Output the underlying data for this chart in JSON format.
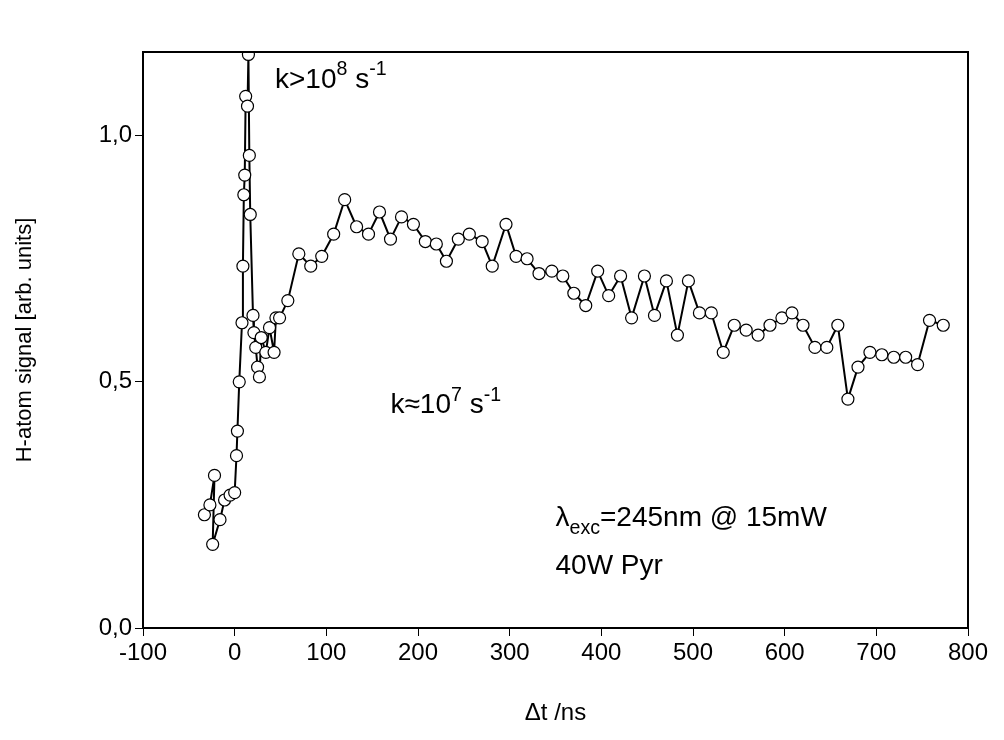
{
  "chart_data": {
    "type": "line",
    "xlabel": "Δt /ns",
    "ylabel": "H-atom signal [arb. units]",
    "x": [
      -33,
      -27,
      -22,
      -24,
      -16,
      -11,
      -5,
      0,
      2,
      3,
      5,
      8,
      9,
      10,
      11,
      12,
      14,
      15,
      16,
      17,
      20,
      21,
      23,
      25,
      27,
      29,
      34,
      38,
      43,
      45,
      49,
      58,
      70,
      83,
      95,
      108,
      120,
      133,
      146,
      158,
      170,
      182,
      195,
      208,
      220,
      231,
      244,
      256,
      270,
      281,
      296,
      307,
      319,
      332,
      346,
      358,
      370,
      383,
      396,
      408,
      421,
      433,
      447,
      458,
      471,
      483,
      495,
      507,
      520,
      533,
      545,
      558,
      571,
      584,
      597,
      608,
      620,
      633,
      646,
      658,
      669,
      680,
      693,
      706,
      719,
      732,
      745,
      758,
      773
    ],
    "series": [
      {
        "color": "#000000",
        "values": [
          0.23,
          0.25,
          0.31,
          0.17,
          0.22,
          0.26,
          0.27,
          0.275,
          0.35,
          0.4,
          0.5,
          0.62,
          0.735,
          0.88,
          0.92,
          1.08,
          1.06,
          1.165,
          0.96,
          0.84,
          0.635,
          0.6,
          0.57,
          0.53,
          0.51,
          0.59,
          0.56,
          0.61,
          0.56,
          0.63,
          0.63,
          0.665,
          0.76,
          0.735,
          0.755,
          0.8,
          0.87,
          0.815,
          0.8,
          0.845,
          0.79,
          0.835,
          0.82,
          0.785,
          0.78,
          0.745,
          0.79,
          0.8,
          0.785,
          0.735,
          0.82,
          0.755,
          0.75,
          0.72,
          0.725,
          0.715,
          0.68,
          0.655,
          0.725,
          0.675,
          0.715,
          0.63,
          0.715,
          0.635,
          0.705,
          0.595,
          0.705,
          0.64,
          0.64,
          0.56,
          0.615,
          0.605,
          0.595,
          0.615,
          0.63,
          0.64,
          0.615,
          0.57,
          0.57,
          0.615,
          0.465,
          0.53,
          0.56,
          0.555,
          0.55,
          0.55,
          0.535,
          0.625,
          0.615
        ]
      }
    ],
    "xlim": [
      -100,
      800
    ],
    "xticks": [
      -100,
      0,
      100,
      200,
      300,
      400,
      500,
      600,
      700,
      800
    ],
    "ylim": [
      0,
      1.17
    ],
    "yticks": [
      {
        "value": 0,
        "label": "0,0"
      },
      {
        "value": 0.5,
        "label": "0,5"
      },
      {
        "value": 1,
        "label": "1,0"
      }
    ],
    "grid": false,
    "legend": false,
    "marker": "circle",
    "line_style": "solid",
    "annotations": [
      "k>10$^{8}$ s$^{-1}$",
      "k≈10$^{7}$ s$^{-1}$",
      "λ$_{exc}$=245nm @ 15mW",
      "40W Pyr"
    ]
  }
}
